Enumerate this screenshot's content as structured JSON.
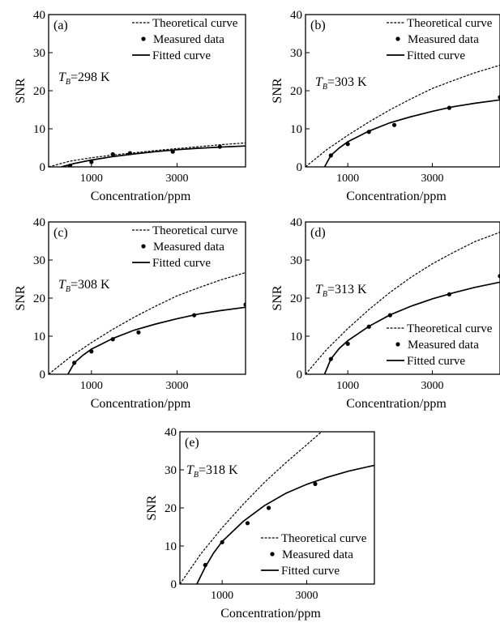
{
  "figure": {
    "panels": [
      {
        "id": "a",
        "label": "(a)",
        "temp_symbol": "T",
        "temp_sub": "B",
        "temp_value": "=298 K"
      },
      {
        "id": "b",
        "label": "(b)",
        "temp_symbol": "T",
        "temp_sub": "B",
        "temp_value": "=303 K"
      },
      {
        "id": "c",
        "label": "(c)",
        "temp_symbol": "T",
        "temp_sub": "B",
        "temp_value": "=308 K"
      },
      {
        "id": "d",
        "label": "(d)",
        "temp_symbol": "T",
        "temp_sub": "B",
        "temp_value": "=313 K"
      },
      {
        "id": "e",
        "label": "(e)",
        "temp_symbol": "T",
        "temp_sub": "B",
        "temp_value": "=318 K"
      }
    ]
  },
  "chart_data": [
    {
      "type": "line",
      "panel": "(a)",
      "xlabel": "Concentration/ppm",
      "ylabel": "SNR",
      "xlim": [
        0,
        4600
      ],
      "ylim": [
        0,
        40
      ],
      "xticks": [
        1000,
        3000
      ],
      "xtick_labels": [
        "1000",
        "3000"
      ],
      "yticks": [
        0,
        10,
        20,
        30,
        40
      ],
      "ytick_labels": [
        "0",
        "10",
        "20",
        "30",
        "40"
      ],
      "legend": [
        "Theoretical curve",
        "Measured data",
        "Fitted curve"
      ],
      "legend_position": "top-right",
      "series": [
        {
          "name": "Theoretical curve",
          "style": "dashed",
          "x": [
            0,
            500,
            1000,
            1500,
            2000,
            2500,
            3000,
            3500,
            4000,
            4600
          ],
          "y": [
            0,
            1.5,
            2.4,
            3.1,
            3.7,
            4.3,
            4.8,
            5.3,
            5.8,
            6.3
          ]
        },
        {
          "name": "Measured data",
          "style": "markers",
          "x": [
            500,
            1000,
            1500,
            1900,
            2900,
            4000
          ],
          "y": [
            0.3,
            1.3,
            3.3,
            3.6,
            4.0,
            5.3
          ]
        },
        {
          "name": "Fitted curve",
          "style": "solid",
          "x": [
            300,
            600,
            1000,
            1500,
            2000,
            2500,
            3000,
            3500,
            4000,
            4600
          ],
          "y": [
            0,
            0.9,
            1.8,
            2.7,
            3.4,
            4.0,
            4.5,
            4.9,
            5.2,
            5.5
          ]
        }
      ]
    },
    {
      "type": "line",
      "panel": "(b)",
      "xlabel": "Concentration/ppm",
      "ylabel": "SNR",
      "xlim": [
        0,
        4600
      ],
      "ylim": [
        0,
        40
      ],
      "xticks": [
        1000,
        3000
      ],
      "xtick_labels": [
        "1000",
        "3000"
      ],
      "yticks": [
        0,
        10,
        20,
        30,
        40
      ],
      "ytick_labels": [
        "0",
        "10",
        "20",
        "30",
        "40"
      ],
      "legend": [
        "Theoretical curve",
        "Measured data",
        "Fitted curve"
      ],
      "legend_position": "top-right",
      "series": [
        {
          "name": "Theoretical curve",
          "style": "dashed",
          "x": [
            0,
            500,
            1000,
            1500,
            2000,
            2500,
            3000,
            3500,
            4000,
            4600
          ],
          "y": [
            0,
            4.5,
            8.3,
            11.8,
            15.0,
            17.9,
            20.6,
            22.7,
            24.7,
            26.7
          ]
        },
        {
          "name": "Measured data",
          "style": "markers",
          "x": [
            600,
            1000,
            1500,
            2100,
            3400,
            4600
          ],
          "y": [
            3.0,
            6.0,
            9.2,
            11.0,
            15.5,
            18.3
          ]
        },
        {
          "name": "Fitted curve",
          "style": "solid",
          "x": [
            450,
            600,
            800,
            1000,
            1500,
            2000,
            2500,
            3000,
            3500,
            4000,
            4600
          ],
          "y": [
            0,
            3.0,
            5.0,
            6.6,
            9.4,
            11.6,
            13.2,
            14.6,
            15.8,
            16.7,
            17.6
          ]
        }
      ]
    },
    {
      "type": "line",
      "panel": "(c)",
      "xlabel": "Concentration/ppm",
      "ylabel": "SNR",
      "xlim": [
        0,
        4600
      ],
      "ylim": [
        0,
        40
      ],
      "xticks": [
        1000,
        3000
      ],
      "xtick_labels": [
        "1000",
        "3000"
      ],
      "yticks": [
        0,
        10,
        20,
        30,
        40
      ],
      "ytick_labels": [
        "0",
        "10",
        "20",
        "30",
        "40"
      ],
      "legend": [
        "Theoretical curve",
        "Measured data",
        "Fitted curve"
      ],
      "legend_position": "top-right",
      "series": [
        {
          "name": "Theoretical curve",
          "style": "dashed",
          "x": [
            0,
            500,
            1000,
            1500,
            2000,
            2500,
            3000,
            3500,
            4000,
            4600
          ],
          "y": [
            0,
            4.5,
            8.3,
            11.8,
            15.0,
            17.9,
            20.6,
            22.7,
            24.7,
            26.7
          ]
        },
        {
          "name": "Measured data",
          "style": "markers",
          "x": [
            600,
            1000,
            1500,
            2100,
            3400,
            4600
          ],
          "y": [
            3.0,
            6.0,
            9.2,
            11.0,
            15.5,
            18.3
          ]
        },
        {
          "name": "Fitted curve",
          "style": "solid",
          "x": [
            450,
            600,
            800,
            1000,
            1500,
            2000,
            2500,
            3000,
            3500,
            4000,
            4600
          ],
          "y": [
            0,
            3.0,
            5.0,
            6.6,
            9.4,
            11.6,
            13.2,
            14.6,
            15.8,
            16.7,
            17.6
          ]
        }
      ]
    },
    {
      "type": "line",
      "panel": "(d)",
      "xlabel": "Concentration/ppm",
      "ylabel": "SNR",
      "xlim": [
        0,
        4600
      ],
      "ylim": [
        0,
        40
      ],
      "xticks": [
        1000,
        3000
      ],
      "xtick_labels": [
        "1000",
        "3000"
      ],
      "yticks": [
        0,
        10,
        20,
        30,
        40
      ],
      "ytick_labels": [
        "0",
        "10",
        "20",
        "30",
        "40"
      ],
      "legend": [
        "Theoretical curve",
        "Measured data",
        "Fitted curve"
      ],
      "legend_position": "bottom-right",
      "series": [
        {
          "name": "Theoretical curve",
          "style": "dashed",
          "x": [
            0,
            500,
            1000,
            1500,
            2000,
            2500,
            3000,
            3500,
            4000,
            4600
          ],
          "y": [
            0,
            6.5,
            12.0,
            17.0,
            21.5,
            25.5,
            29.0,
            32.0,
            34.8,
            37.3
          ]
        },
        {
          "name": "Measured data",
          "style": "markers",
          "x": [
            600,
            1000,
            1500,
            2000,
            3400,
            4600
          ],
          "y": [
            4.0,
            8.0,
            12.5,
            15.5,
            21.0,
            25.8
          ]
        },
        {
          "name": "Fitted curve",
          "style": "solid",
          "x": [
            450,
            600,
            800,
            1000,
            1500,
            2000,
            2500,
            3000,
            3500,
            4000,
            4600
          ],
          "y": [
            0,
            4.0,
            6.8,
            8.8,
            12.6,
            15.6,
            17.9,
            19.8,
            21.4,
            22.8,
            24.2
          ]
        }
      ]
    },
    {
      "type": "line",
      "panel": "(e)",
      "xlabel": "Concentration/ppm",
      "ylabel": "SNR",
      "xlim": [
        0,
        4600
      ],
      "ylim": [
        0,
        40
      ],
      "xticks": [
        1000,
        3000
      ],
      "xtick_labels": [
        "1000",
        "3000"
      ],
      "yticks": [
        0,
        10,
        20,
        30,
        40
      ],
      "ytick_labels": [
        "0",
        "10",
        "20",
        "30",
        "40"
      ],
      "legend": [
        "Theoretical curve",
        "Measured data",
        "Fitted curve"
      ],
      "legend_position": "bottom-right",
      "series": [
        {
          "name": "Theoretical curve",
          "style": "dashed",
          "x": [
            0,
            500,
            1000,
            1500,
            2000,
            2500,
            3000,
            3350
          ],
          "y": [
            0,
            8.0,
            14.8,
            21.0,
            26.7,
            31.8,
            36.6,
            40.0
          ]
        },
        {
          "name": "Measured data",
          "style": "markers",
          "x": [
            600,
            1000,
            1600,
            2100,
            3200
          ],
          "y": [
            5.0,
            11.0,
            16.0,
            20.0,
            26.3
          ]
        },
        {
          "name": "Fitted curve",
          "style": "solid",
          "x": [
            400,
            600,
            800,
            1000,
            1500,
            2000,
            2500,
            3000,
            3500,
            4000,
            4600
          ],
          "y": [
            0,
            4.5,
            8.2,
            11.2,
            16.5,
            20.6,
            23.8,
            26.2,
            28.1,
            29.7,
            31.2
          ]
        }
      ]
    }
  ]
}
